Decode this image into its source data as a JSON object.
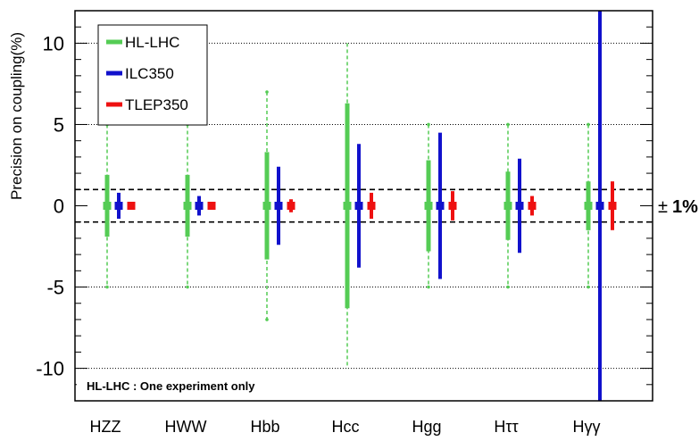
{
  "chart_data": {
    "type": "errorbar",
    "ylabel": "Precision on coupling(%)",
    "ylim": [
      -12,
      12
    ],
    "yticks": [
      10,
      5,
      0,
      -5,
      -10
    ],
    "ytick_labels": [
      "10",
      "5",
      "0",
      "-5",
      "-10"
    ],
    "categories": [
      "HZZ",
      "HWW",
      "Hbb",
      "Hcc",
      "Hgg",
      "Hττ",
      "Hγγ"
    ],
    "grid": "dotted horizontal at ±5 and ±10",
    "series": [
      {
        "name": "HL-LHC",
        "color": "#55cc55",
        "style": "thick bar with dashed extension",
        "values": [
          1.9,
          1.9,
          3.3,
          6.3,
          2.8,
          2.1,
          1.5
        ],
        "dashed_extension": [
          5.0,
          5.0,
          7.0,
          10.0,
          5.0,
          5.0,
          5.0
        ]
      },
      {
        "name": "ILC350",
        "color": "#1111cc",
        "style": "solid bar",
        "values": [
          0.8,
          0.6,
          2.4,
          3.8,
          4.5,
          2.9,
          12.0
        ]
      },
      {
        "name": "TLEP350",
        "color": "#ee1111",
        "style": "solid bar",
        "values": [
          0.1,
          0.1,
          0.4,
          0.8,
          0.9,
          0.6,
          1.5
        ]
      }
    ],
    "reference_lines": [
      1,
      -1
    ],
    "reference_label_sign": "±",
    "reference_label_value": "1%",
    "note": "HL-LHC : One experiment only",
    "legend_placement": "top-left"
  }
}
